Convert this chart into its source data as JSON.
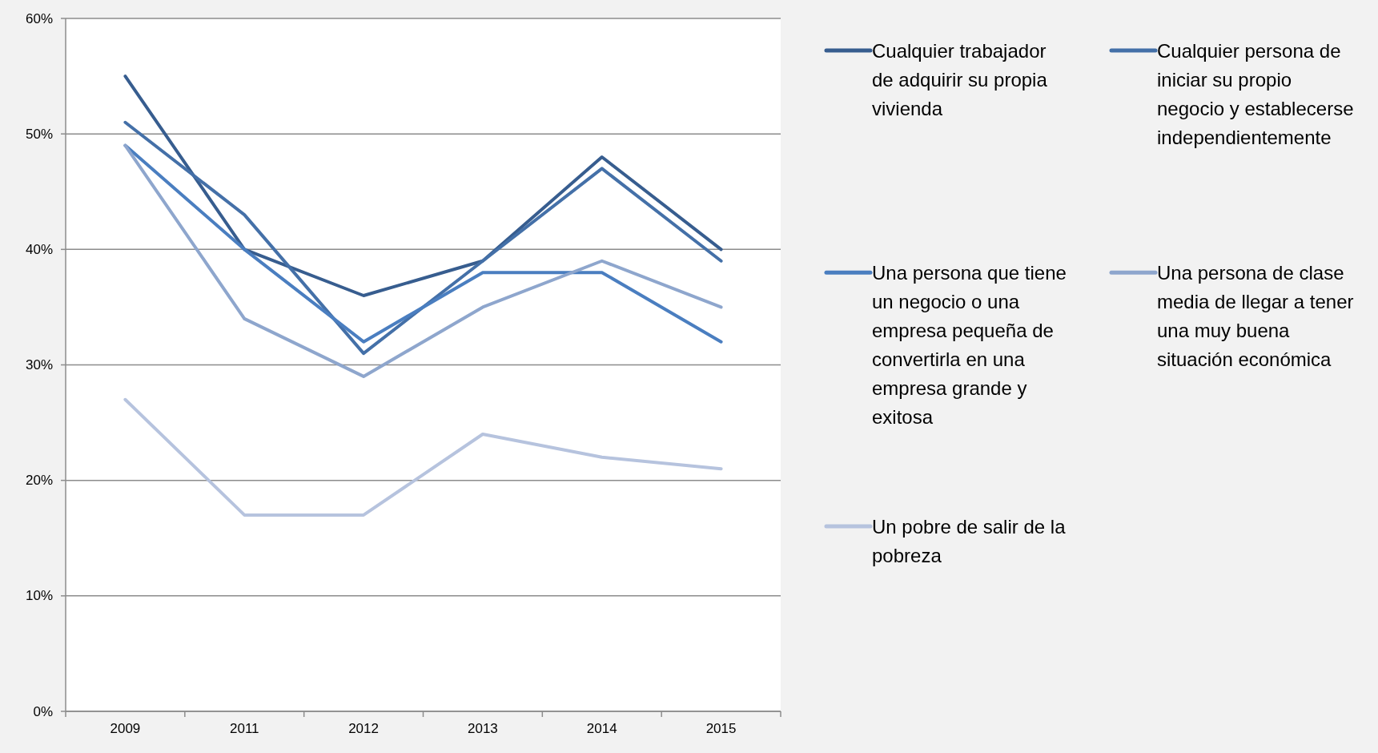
{
  "chart_data": {
    "type": "line",
    "categories": [
      "2009",
      "2011",
      "2012",
      "2013",
      "2014",
      "2015"
    ],
    "series": [
      {
        "name": "Cualquier trabajador de adquirir su propia vivienda",
        "color": "#375d8f",
        "values": [
          55,
          40,
          36,
          39,
          48,
          40
        ]
      },
      {
        "name": "Cualquier persona de iniciar su propio negocio y establecerse independientemente",
        "color": "#4470a8",
        "values": [
          51,
          43,
          31,
          39,
          47,
          39
        ]
      },
      {
        "name": "Una persona que tiene un negocio o una empresa pequeña de convertirla en una empresa grande y exitosa",
        "color": "#4a7ec0",
        "values": [
          49,
          40,
          32,
          38,
          38,
          32
        ]
      },
      {
        "name": "Una persona de clase media de llegar a tener una muy buena situación económica",
        "color": "#8ea6cd",
        "values": [
          49,
          34,
          29,
          35,
          39,
          35
        ]
      },
      {
        "name": "Un pobre de salir de la pobreza",
        "color": "#b6c3de",
        "values": [
          27,
          17,
          17,
          24,
          22,
          21
        ]
      }
    ],
    "ylim": [
      0,
      60
    ],
    "yticks": [
      {
        "value": 0,
        "label": "0%"
      },
      {
        "value": 10,
        "label": "10%"
      },
      {
        "value": 20,
        "label": "20%"
      },
      {
        "value": 30,
        "label": "30%"
      },
      {
        "value": 40,
        "label": "40%"
      },
      {
        "value": 50,
        "label": "50%"
      },
      {
        "value": 60,
        "label": "60%"
      }
    ],
    "grid": "y",
    "legend": "right",
    "marker": "none",
    "line_style": "solid"
  }
}
